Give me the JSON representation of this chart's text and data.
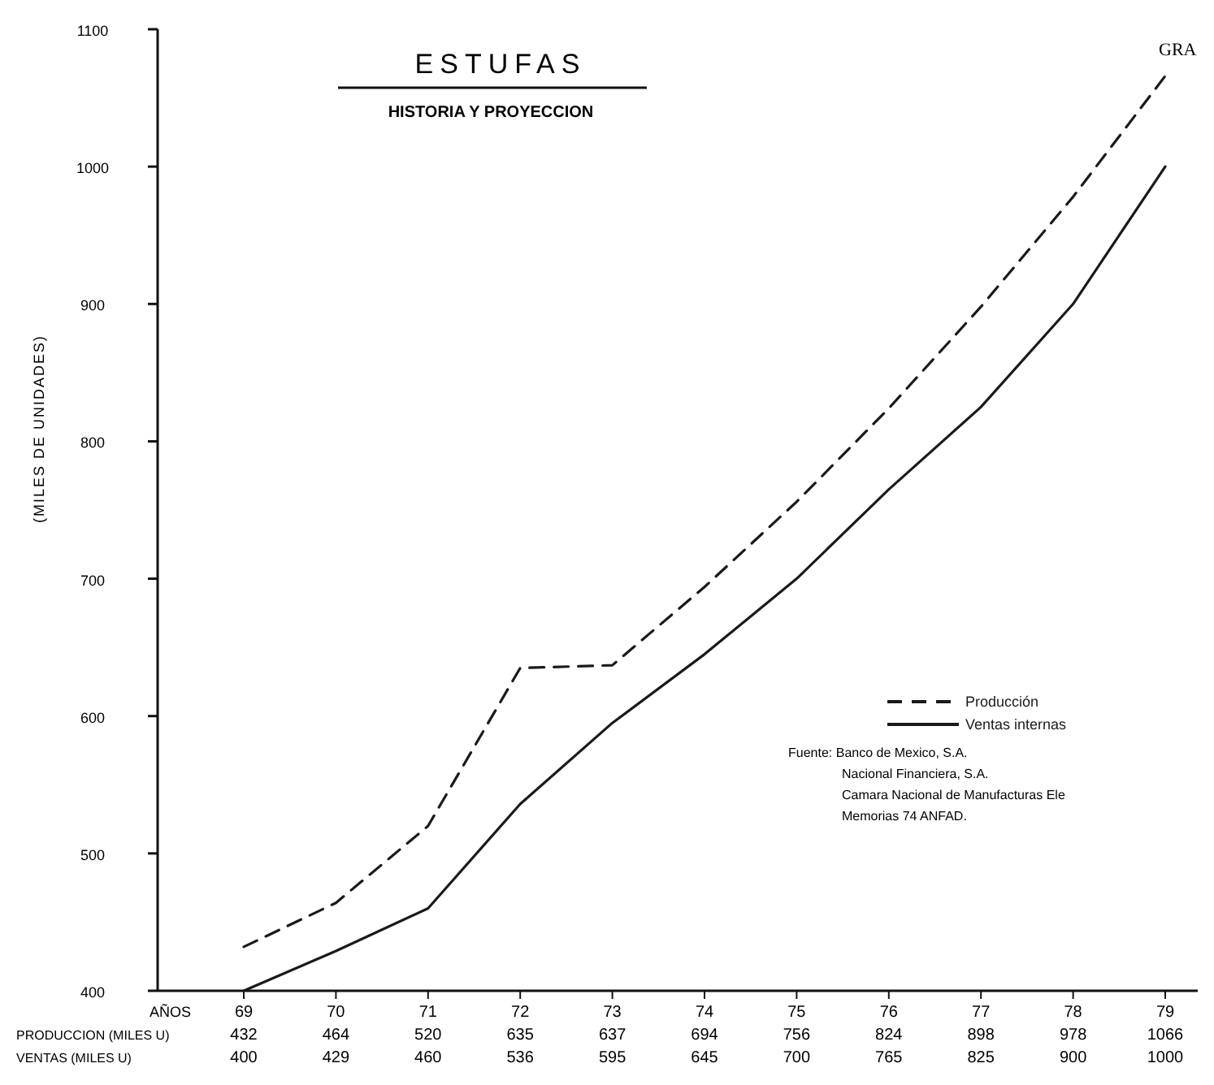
{
  "chart_data": {
    "type": "line",
    "title": "ESTUFAS",
    "subtitle": "HISTORIA Y PROYECCION",
    "xlabel": "AÑOS",
    "ylabel": "(MILES DE UNIDADES)",
    "categories": [
      "69",
      "70",
      "71",
      "72",
      "73",
      "74",
      "75",
      "76",
      "77",
      "78",
      "79"
    ],
    "series": [
      {
        "name": "Producción",
        "color": "#1a1a1a",
        "line_style": "dashed",
        "values": [
          432,
          464,
          520,
          635,
          637,
          694,
          756,
          824,
          898,
          978,
          1066
        ]
      },
      {
        "name": "Ventas internas",
        "color": "#1a1a1a",
        "line_style": "solid",
        "values": [
          400,
          429,
          460,
          536,
          595,
          645,
          700,
          765,
          825,
          900,
          1000
        ]
      }
    ],
    "ylim": [
      400,
      1100
    ],
    "yticks": [
      400,
      500,
      600,
      700,
      800,
      900,
      1000,
      1100
    ],
    "grid": false,
    "legend": "right",
    "data_labels": true,
    "annotations": [
      "PRODUCCION (MILES U)",
      "VENTAS (MILES U)",
      "Fuente: Banco de Mexico, S.A.",
      "Nacional Financiera, S.A.",
      "Camara Nacional de Manufacturas Ele",
      "Memorias 74 ANFAD.",
      "GRA"
    ]
  }
}
